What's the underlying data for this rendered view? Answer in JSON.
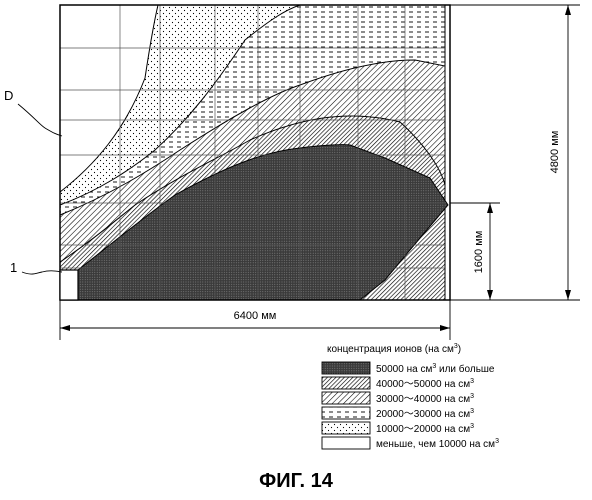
{
  "figure_caption": "ФИГ. 14",
  "labels": {
    "curve_D": "D",
    "marker_1": "1",
    "width_dimension": "6400 мм",
    "height_dimension": "4800 мм",
    "sub_height_dimension": "1600 мм"
  },
  "legend": {
    "title_main": "концентрация ионов (на см",
    "title_sup": "3",
    "title_close": ")",
    "items": [
      {
        "main": "50000  на см",
        "sup": "3",
        "after": "  или больше",
        "pattern": "dense-dots"
      },
      {
        "main": "40000～50000  на см",
        "sup": "3",
        "after": "",
        "pattern": "cross-hatch"
      },
      {
        "main": "30000～40000  на см",
        "sup": "3",
        "after": "",
        "pattern": "diagonal-hatch"
      },
      {
        "main": "20000～30000  на см",
        "sup": "3",
        "after": "",
        "pattern": "dashes"
      },
      {
        "main": "10000～20000  на см",
        "sup": "3",
        "after": "",
        "pattern": "sparse-dots"
      },
      {
        "main": "меньше, чем 10000  на см",
        "sup": "3",
        "after": "",
        "pattern": "blank"
      }
    ]
  }
}
